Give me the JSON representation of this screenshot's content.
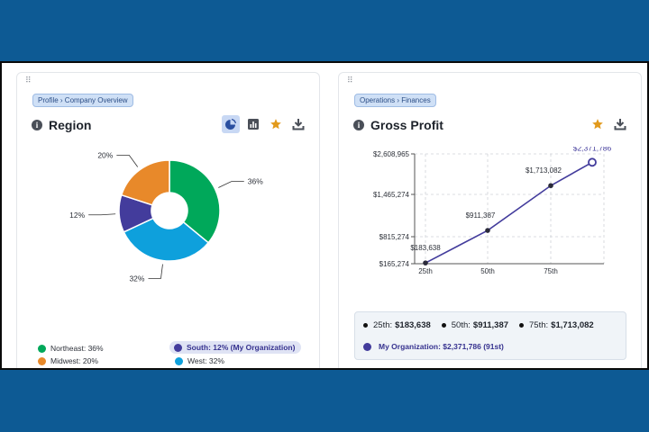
{
  "left_card": {
    "breadcrumb": "Profile › Company Overview",
    "title": "Region",
    "tools": [
      "pie-chart-icon",
      "bar-chart-icon",
      "star-icon",
      "download-icon"
    ],
    "chart_data": {
      "type": "pie",
      "slices": [
        {
          "label": "Northeast",
          "value": 36,
          "display": "36%",
          "color": "#00a85a"
        },
        {
          "label": "West",
          "value": 32,
          "display": "32%",
          "color": "#0ea0dc"
        },
        {
          "label": "South",
          "value": 12,
          "display": "12%",
          "color": "#433c9c"
        },
        {
          "label": "Midwest",
          "value": 20,
          "display": "20%",
          "color": "#e8892a"
        }
      ]
    },
    "legend": [
      {
        "text": "Northeast: 36%",
        "color": "#00a85a",
        "highlight": false
      },
      {
        "text": "South: 12% (My Organization)",
        "color": "#433c9c",
        "highlight": true
      },
      {
        "text": "Midwest: 20%",
        "color": "#e8892a",
        "highlight": false
      },
      {
        "text": "West: 32%",
        "color": "#0ea0dc",
        "highlight": false
      }
    ]
  },
  "right_card": {
    "breadcrumb": "Operations › Finances",
    "title": "Gross Profit",
    "tools": [
      "star-icon",
      "download-icon"
    ],
    "chart_data": {
      "type": "line",
      "x_ticks": [
        "25th",
        "50th",
        "75th"
      ],
      "y_ticks": [
        "$2,608,965",
        "$1,465,274",
        "$815,274",
        "$165,274"
      ],
      "y_values_at_ticks": [
        2608965,
        1465274,
        815274,
        165274
      ],
      "points": [
        {
          "x": "25th",
          "y": 183638,
          "label": "$183,638"
        },
        {
          "x": "50th",
          "y": 911387,
          "label": "$911,387"
        },
        {
          "x": "75th",
          "y": 1713082,
          "label": "$1,713,082"
        },
        {
          "x": "My Organization",
          "y": 2371786,
          "label": "$2,371,786",
          "highlight": true
        }
      ],
      "line_color": "#433c9c",
      "grid": true
    },
    "summary": {
      "p25_label": "25th:",
      "p25_value": "$183,638",
      "p50_label": "50th:",
      "p50_value": "$911,387",
      "p75_label": "75th:",
      "p75_value": "$1,713,082",
      "org": "My Organization: $2,371,786 (91st)"
    }
  },
  "colors": {
    "background": "#0d5a94",
    "accent_active": "#c8d8f4",
    "star": "#e29a1c",
    "org": "#433c9c"
  }
}
